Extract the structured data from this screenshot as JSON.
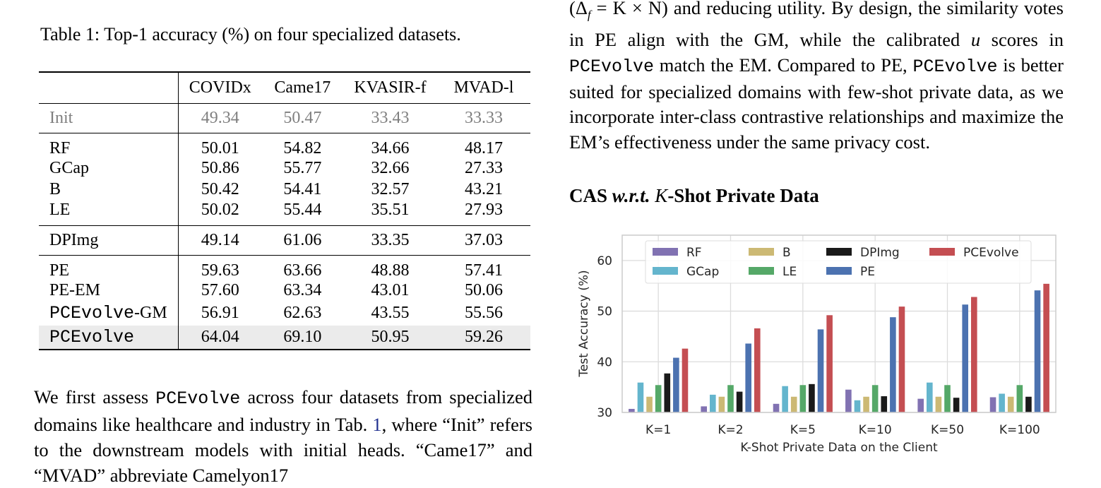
{
  "table": {
    "caption": "Table 1: Top-1 accuracy (%) on four specialized datasets.",
    "columns": [
      "",
      "COVIDx",
      "Came17",
      "KVASIR-f",
      "MVAD-l"
    ],
    "init": {
      "label": "Init",
      "values": [
        "49.34",
        "50.47",
        "33.43",
        "33.33"
      ]
    },
    "group1": [
      {
        "label": "RF",
        "values": [
          "50.01",
          "54.82",
          "34.66",
          "48.17"
        ]
      },
      {
        "label": "GCap",
        "values": [
          "50.86",
          "55.77",
          "32.66",
          "27.33"
        ]
      },
      {
        "label": "B",
        "values": [
          "50.42",
          "54.41",
          "32.57",
          "43.21"
        ]
      },
      {
        "label": "LE",
        "values": [
          "50.02",
          "55.44",
          "35.51",
          "27.93"
        ]
      }
    ],
    "dpimg": {
      "label": "DPImg",
      "values": [
        "49.14",
        "61.06",
        "33.35",
        "37.03"
      ]
    },
    "group3": [
      {
        "label": "PE",
        "values": [
          "59.63",
          "63.66",
          "48.88",
          "57.41"
        ]
      },
      {
        "label": "PE-EM",
        "values": [
          "57.60",
          "63.34",
          "43.01",
          "50.06"
        ]
      },
      {
        "label_mono": "PCEvolve",
        "label_suffix": "-GM",
        "values": [
          "56.91",
          "62.63",
          "43.55",
          "55.56"
        ]
      }
    ],
    "final": {
      "label_mono": "PCEvolve",
      "values": [
        "64.04",
        "69.10",
        "50.95",
        "59.26"
      ]
    }
  },
  "left_paragraph": {
    "p1": "We first assess ",
    "m1": "PCEvolve",
    "p2": " across four datasets from specialized domains like healthcare and industry in Tab. ",
    "ref": "1",
    "p3": ", where “Init” refers to the downstream models with initial heads. “Came17” and “MVAD” abbreviate Camelyon17"
  },
  "right_paragraph": {
    "p1": "(Δ",
    "sub": "f",
    "p2": " = K × N) and reducing utility. By design, the similarity votes in PE align with the GM, while the calibrated ",
    "u": "u",
    "p3": " scores in ",
    "m1": "PCEvolve",
    "p4": " match the EM. Compared to PE, ",
    "m2": "PCEvolve",
    "p5": " is better suited for specialized domains with few-shot private data, as we incorporate inter-class contrastive relationships and maximize the EM’s effectiveness under the same privacy cost."
  },
  "heading": {
    "a": "CAS ",
    "b": "w.r.t.",
    "c": " ",
    "k": "K",
    "d": "-Shot Private Data"
  },
  "chart_data": {
    "type": "bar",
    "categories": [
      "K=1",
      "K=2",
      "K=5",
      "K=10",
      "K=50",
      "K=100"
    ],
    "xlabel": "K-Shot Private Data on the Client",
    "ylabel": "Test Accuracy (%)",
    "ylim": [
      30,
      65
    ],
    "yticks": [
      30,
      40,
      50,
      60
    ],
    "grid": true,
    "legend": "top",
    "series": [
      {
        "name": "RF",
        "color": "#8172b2",
        "values": [
          30.7,
          31.2,
          31.7,
          34.5,
          32.7,
          33.0
        ]
      },
      {
        "name": "GCap",
        "color": "#64b5cd",
        "values": [
          35.9,
          33.5,
          35.2,
          32.4,
          35.9,
          33.7
        ]
      },
      {
        "name": "B",
        "color": "#ccb974",
        "values": [
          33.1,
          33.1,
          33.1,
          33.1,
          33.1,
          33.1
        ]
      },
      {
        "name": "LE",
        "color": "#55a868",
        "values": [
          35.4,
          35.4,
          35.4,
          35.4,
          35.4,
          35.4
        ]
      },
      {
        "name": "DPImg",
        "color": "#1a1a1a",
        "values": [
          37.7,
          34.1,
          35.6,
          33.2,
          32.9,
          33.1
        ]
      },
      {
        "name": "PE",
        "color": "#4c72b0",
        "values": [
          40.8,
          43.6,
          46.4,
          48.8,
          51.3,
          54.1
        ]
      },
      {
        "name": "PCEvolve",
        "color": "#c44e52",
        "values": [
          42.6,
          46.6,
          49.2,
          50.9,
          52.8,
          55.4
        ]
      }
    ]
  }
}
